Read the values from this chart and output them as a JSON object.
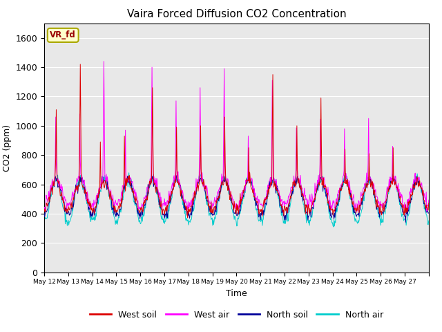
{
  "title": "Vaira Forced Diffusion CO2 Concentration",
  "xlabel": "Time",
  "ylabel": "CO2 (ppm)",
  "ylim": [
    0,
    1700
  ],
  "yticks": [
    0,
    200,
    400,
    600,
    800,
    1000,
    1200,
    1400,
    1600
  ],
  "background_color": "#e8e8e8",
  "legend_label": "VR_fd",
  "legend_bg": "#ffffcc",
  "legend_border": "#aaa800",
  "legend_text_color": "#990000",
  "series": {
    "west_soil": {
      "color": "#dd0000",
      "label": "West soil"
    },
    "west_air": {
      "color": "#ff00ff",
      "label": "West air"
    },
    "north_soil": {
      "color": "#000099",
      "label": "North soil"
    },
    "north_air": {
      "color": "#00cccc",
      "label": "North air"
    }
  },
  "xtick_labels": [
    "May 12",
    "May 13",
    "May 14",
    "May 15",
    "May 16",
    "May 17",
    "May 18",
    "May 19",
    "May 20",
    "May 21",
    "May 22",
    "May 23",
    "May 24",
    "May 25",
    "May 26",
    "May 27"
  ],
  "num_days": 16,
  "points_per_day": 48
}
